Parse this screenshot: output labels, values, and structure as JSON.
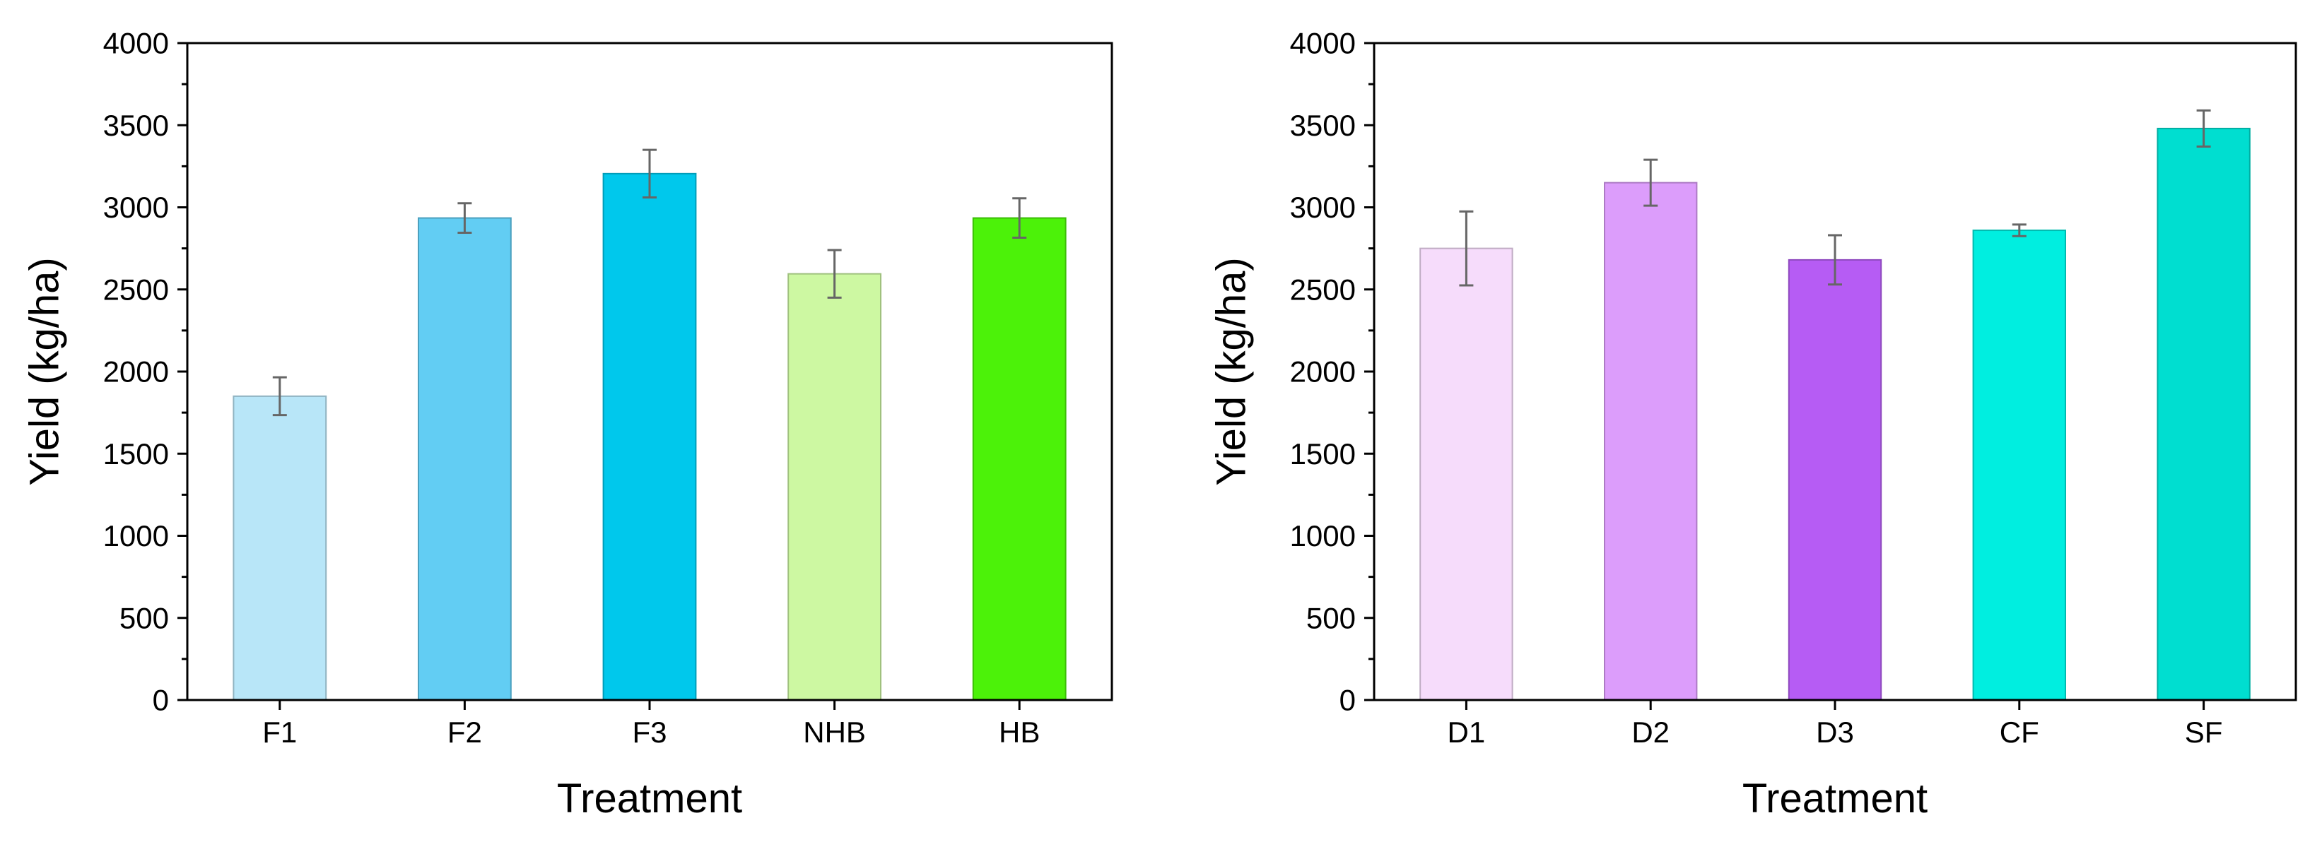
{
  "chart_data": [
    {
      "type": "bar",
      "xlabel": "Treatment",
      "ylabel": "Yield (kg/ha)",
      "ylim": [
        0,
        4000
      ],
      "y_ticks": [
        0,
        500,
        1000,
        1500,
        2000,
        2500,
        3000,
        3500,
        4000
      ],
      "y_minor_step": 250,
      "grid": false,
      "categories": [
        "F1",
        "F2",
        "F3",
        "NHB",
        "HB"
      ],
      "values": [
        1850,
        2935,
        3205,
        2595,
        2935
      ],
      "errors": [
        115,
        90,
        145,
        145,
        120
      ],
      "colors": [
        "#b8e6f8",
        "#62cdf3",
        "#00c8ec",
        "#cdf8a2",
        "#4cf209"
      ]
    },
    {
      "type": "bar",
      "xlabel": "Treatment",
      "ylabel": "Yield (kg/ha)",
      "ylim": [
        0,
        4000
      ],
      "y_ticks": [
        0,
        500,
        1000,
        1500,
        2000,
        2500,
        3000,
        3500,
        4000
      ],
      "y_minor_step": 250,
      "grid": false,
      "categories": [
        "D1",
        "D2",
        "D3",
        "CF",
        "SF"
      ],
      "values": [
        2750,
        3150,
        2680,
        2860,
        3480
      ],
      "errors": [
        225,
        140,
        150,
        35,
        110
      ],
      "colors": [
        "#f6dcfb",
        "#dc9dfb",
        "#b65cf4",
        "#00eee0",
        "#00ded0"
      ]
    }
  ]
}
